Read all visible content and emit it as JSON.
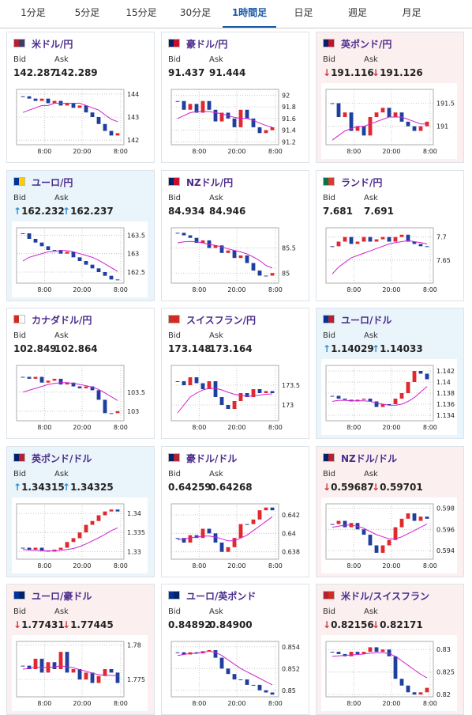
{
  "tabs": [
    "1分足",
    "5分足",
    "15分足",
    "30分足",
    "1時間足",
    "日足",
    "週足",
    "月足"
  ],
  "active_tab": 4,
  "labels": {
    "bid": "Bid",
    "ask": "Ask"
  },
  "xlabels": [
    "8:00",
    "20:00",
    "8:00"
  ],
  "cards": [
    {
      "name": "米ドル/円",
      "bid": "142.287",
      "ask": "142.289",
      "trend": null,
      "flag": [
        "#b22234",
        "#3c3b6e"
      ],
      "chart": {
        "ylim": [
          141.8,
          144.2
        ],
        "yticks": [
          142,
          143,
          144
        ],
        "close": [
          143.9,
          143.8,
          143.7,
          143.8,
          143.6,
          143.7,
          143.5,
          143.6,
          143.4,
          143.5,
          143.2,
          143.0,
          142.7,
          142.4,
          142.2,
          142.3
        ],
        "ma": [
          143.2,
          143.3,
          143.4,
          143.5,
          143.5,
          143.6,
          143.6,
          143.6,
          143.6,
          143.6,
          143.5,
          143.4,
          143.3,
          143.1,
          142.9,
          142.8
        ]
      }
    },
    {
      "name": "豪ドル/円",
      "bid": "91.437",
      "ask": "91.444",
      "trend": null,
      "flag": [
        "#012169",
        "#c8102e"
      ],
      "chart": {
        "ylim": [
          91.15,
          92.1
        ],
        "yticks": [
          91.2,
          91.4,
          91.6,
          91.8,
          92
        ],
        "close": [
          91.9,
          91.75,
          91.85,
          91.7,
          91.9,
          91.75,
          91.55,
          91.7,
          91.6,
          91.45,
          91.75,
          91.6,
          91.45,
          91.35,
          91.4,
          91.45
        ],
        "ma": [
          91.6,
          91.65,
          91.7,
          91.72,
          91.72,
          91.72,
          91.7,
          91.68,
          91.65,
          91.62,
          91.6,
          91.6,
          91.57,
          91.52,
          91.48,
          91.45
        ]
      }
    },
    {
      "name": "英ポンド/円",
      "bid": "191.116",
      "ask": "191.126",
      "trend": "down",
      "arrow": "↓",
      "flag": [
        "#012169",
        "#c8102e"
      ],
      "chart": {
        "ylim": [
          190.6,
          191.8
        ],
        "yticks": [
          191,
          191.5
        ],
        "close": [
          191.5,
          191.2,
          191.3,
          190.9,
          191.0,
          190.8,
          191.2,
          191.3,
          191.4,
          191.2,
          191.3,
          191.1,
          191.0,
          190.9,
          191.0,
          191.1
        ],
        "ma": [
          190.7,
          190.8,
          190.9,
          190.95,
          191.0,
          191.0,
          191.05,
          191.1,
          191.15,
          191.2,
          191.2,
          191.2,
          191.15,
          191.1,
          191.05,
          191.05
        ]
      }
    },
    {
      "name": "ユーロ/円",
      "bid": "162.232",
      "ask": "162.237",
      "trend": "up",
      "arrow": "↑",
      "flag": [
        "#003399",
        "#ffcc00"
      ],
      "chart": {
        "ylim": [
          162.2,
          163.7
        ],
        "yticks": [
          162.5,
          163,
          163.5
        ],
        "close": [
          163.55,
          163.4,
          163.3,
          163.2,
          163.1,
          163.1,
          163.0,
          163.05,
          162.9,
          162.8,
          162.7,
          162.6,
          162.5,
          162.4,
          162.3,
          162.3
        ],
        "ma": [
          162.8,
          162.9,
          162.95,
          163.0,
          163.05,
          163.05,
          163.08,
          163.08,
          163.05,
          163.0,
          162.95,
          162.9,
          162.82,
          162.72,
          162.62,
          162.52
        ]
      }
    },
    {
      "name": "NZドル/円",
      "bid": "84.934",
      "ask": "84.946",
      "trend": null,
      "flag": [
        "#012169",
        "#c8102e"
      ],
      "chart": {
        "ylim": [
          84.8,
          85.9
        ],
        "yticks": [
          85,
          85.5
        ],
        "close": [
          85.8,
          85.75,
          85.7,
          85.6,
          85.65,
          85.5,
          85.55,
          85.4,
          85.45,
          85.3,
          85.35,
          85.2,
          85.05,
          84.95,
          84.95,
          85.0
        ],
        "ma": [
          85.6,
          85.62,
          85.63,
          85.62,
          85.6,
          85.57,
          85.55,
          85.52,
          85.48,
          85.45,
          85.42,
          85.38,
          85.32,
          85.25,
          85.15,
          85.1
        ]
      }
    },
    {
      "name": "ランド/円",
      "bid": "7.681",
      "ask": "7.691",
      "trend": null,
      "flag": [
        "#007749",
        "#de3831"
      ],
      "chart": {
        "ylim": [
          7.6,
          7.72
        ],
        "yticks": [
          7.65,
          7.7
        ],
        "close": [
          7.68,
          7.69,
          7.7,
          7.685,
          7.69,
          7.7,
          7.69,
          7.695,
          7.7,
          7.69,
          7.7,
          7.705,
          7.69,
          7.685,
          7.68,
          7.68
        ],
        "ma": [
          7.62,
          7.635,
          7.645,
          7.655,
          7.66,
          7.665,
          7.67,
          7.675,
          7.68,
          7.685,
          7.688,
          7.69,
          7.692,
          7.69,
          7.688,
          7.685
        ]
      }
    },
    {
      "name": "カナダドル/円",
      "bid": "102.849",
      "ask": "102.864",
      "trend": null,
      "flag": [
        "#d52b1e",
        "#ffffff"
      ],
      "chart": {
        "ylim": [
          102.75,
          104.2
        ],
        "yticks": [
          103,
          103.5
        ],
        "close": [
          103.9,
          103.85,
          103.9,
          103.75,
          103.8,
          103.85,
          103.7,
          103.75,
          103.65,
          103.6,
          103.65,
          103.55,
          103.3,
          102.95,
          102.95,
          103.0
        ],
        "ma": [
          103.5,
          103.55,
          103.6,
          103.65,
          103.7,
          103.73,
          103.75,
          103.75,
          103.73,
          103.7,
          103.67,
          103.63,
          103.57,
          103.48,
          103.38,
          103.28
        ]
      }
    },
    {
      "name": "スイスフラン/円",
      "bid": "173.148",
      "ask": "173.164",
      "trend": null,
      "flag": [
        "#d52b1e",
        "#d52b1e"
      ],
      "chart": {
        "ylim": [
          172.6,
          174.0
        ],
        "yticks": [
          173,
          173.5
        ],
        "close": [
          173.6,
          173.5,
          173.7,
          173.55,
          173.4,
          173.6,
          173.2,
          173.0,
          172.9,
          173.1,
          173.3,
          173.2,
          173.4,
          173.3,
          173.35,
          173.3
        ],
        "ma": [
          172.8,
          173.0,
          173.2,
          173.3,
          173.38,
          173.42,
          173.42,
          173.38,
          173.32,
          173.27,
          173.24,
          173.22,
          173.23,
          173.25,
          173.27,
          173.28
        ]
      }
    },
    {
      "name": "ユーロ/ドル",
      "bid": "1.14029",
      "ask": "1.14033",
      "trend": "up",
      "arrow": "↑",
      "flag": [
        "#003399",
        "#b22234"
      ],
      "chart": {
        "ylim": [
          1.133,
          1.143
        ],
        "yticks": [
          1.134,
          1.136,
          1.138,
          1.14,
          1.142
        ],
        "close": [
          1.1375,
          1.137,
          1.1368,
          1.1365,
          1.1368,
          1.137,
          1.1365,
          1.1355,
          1.136,
          1.136,
          1.137,
          1.138,
          1.14,
          1.142,
          1.1415,
          1.1405
        ],
        "ma": [
          1.1365,
          1.1367,
          1.1367,
          1.1366,
          1.1366,
          1.1366,
          1.1365,
          1.1362,
          1.136,
          1.1358,
          1.1358,
          1.136,
          1.1365,
          1.1372,
          1.1382,
          1.1392
        ]
      }
    },
    {
      "name": "英ポンド/ドル",
      "bid": "1.34315",
      "ask": "1.34325",
      "trend": "up",
      "arrow": "↑",
      "flag": [
        "#012169",
        "#b22234"
      ],
      "chart": {
        "ylim": [
          1.328,
          1.3425
        ],
        "yticks": [
          1.33,
          1.335,
          1.34
        ],
        "close": [
          1.331,
          1.3305,
          1.331,
          1.3302,
          1.33,
          1.3305,
          1.331,
          1.3325,
          1.3335,
          1.335,
          1.337,
          1.338,
          1.3395,
          1.3405,
          1.341,
          1.3405
        ],
        "ma": [
          1.3305,
          1.3304,
          1.3303,
          1.3302,
          1.3302,
          1.3302,
          1.3303,
          1.3305,
          1.3308,
          1.3313,
          1.332,
          1.3328,
          1.3336,
          1.3345,
          1.3355,
          1.3362
        ]
      }
    },
    {
      "name": "豪ドル/ドル",
      "bid": "0.64259",
      "ask": "0.64268",
      "trend": null,
      "flag": [
        "#012169",
        "#b22234"
      ],
      "chart": {
        "ylim": [
          0.6372,
          0.6432
        ],
        "yticks": [
          0.638,
          0.64,
          0.642
        ],
        "close": [
          0.6395,
          0.639,
          0.6398,
          0.6395,
          0.6405,
          0.64,
          0.639,
          0.638,
          0.6385,
          0.6395,
          0.641,
          0.641,
          0.6415,
          0.6425,
          0.6428,
          0.6425
        ],
        "ma": [
          0.6393,
          0.6394,
          0.6395,
          0.6396,
          0.6397,
          0.6397,
          0.6396,
          0.6394,
          0.6392,
          0.6392,
          0.6395,
          0.6398,
          0.6403,
          0.6408,
          0.6413,
          0.6418
        ]
      }
    },
    {
      "name": "NZドル/ドル",
      "bid": "0.59687",
      "ask": "0.59701",
      "trend": "down",
      "arrow": "↓",
      "flag": [
        "#012169",
        "#b22234"
      ],
      "chart": {
        "ylim": [
          0.5932,
          0.5984
        ],
        "yticks": [
          0.594,
          0.596,
          0.598
        ],
        "close": [
          0.5965,
          0.5968,
          0.5962,
          0.5966,
          0.596,
          0.5955,
          0.5945,
          0.5938,
          0.5945,
          0.595,
          0.5962,
          0.597,
          0.5975,
          0.5968,
          0.5972,
          0.597
        ],
        "ma": [
          0.5962,
          0.5963,
          0.5964,
          0.5964,
          0.5963,
          0.5961,
          0.5958,
          0.5955,
          0.5953,
          0.5951,
          0.5951,
          0.5953,
          0.5956,
          0.5959,
          0.5962,
          0.5965
        ]
      }
    },
    {
      "name": "ユーロ/豪ドル",
      "bid": "1.77431",
      "ask": "1.77445",
      "trend": "down",
      "arrow": "↓",
      "flag": [
        "#003399",
        "#012169"
      ],
      "chart": {
        "ylim": [
          1.7725,
          1.7805
        ],
        "yticks": [
          1.775,
          1.78
        ],
        "close": [
          1.777,
          1.7765,
          1.778,
          1.776,
          1.7775,
          1.7765,
          1.779,
          1.776,
          1.7765,
          1.775,
          1.776,
          1.7745,
          1.7755,
          1.7765,
          1.776,
          1.7745
        ],
        "ma": [
          1.7765,
          1.7766,
          1.7768,
          1.7767,
          1.7768,
          1.7768,
          1.777,
          1.7768,
          1.7767,
          1.7764,
          1.7762,
          1.7759,
          1.7757,
          1.7756,
          1.7756,
          1.7755
        ]
      }
    },
    {
      "name": "ユーロ/英ポンド",
      "bid": "0.84892",
      "ask": "0.84900",
      "trend": null,
      "flag": [
        "#003399",
        "#012169"
      ],
      "chart": {
        "ylim": [
          0.8494,
          0.8545
        ],
        "yticks": [
          0.85,
          0.852,
          0.854
        ],
        "close": [
          0.8535,
          0.8533,
          0.8535,
          0.8534,
          0.8536,
          0.8537,
          0.853,
          0.852,
          0.8515,
          0.851,
          0.851,
          0.8505,
          0.8505,
          0.85,
          0.8498,
          0.8496
        ],
        "ma": [
          0.8532,
          0.8533,
          0.8534,
          0.8534,
          0.8535,
          0.8536,
          0.8535,
          0.8532,
          0.8528,
          0.8524,
          0.852,
          0.8517,
          0.8514,
          0.8511,
          0.8508,
          0.8505
        ]
      }
    },
    {
      "name": "米ドル/スイスフラン",
      "bid": "0.82156",
      "ask": "0.82171",
      "trend": "down",
      "arrow": "↓",
      "flag": [
        "#b22234",
        "#d52b1e"
      ],
      "chart": {
        "ylim": [
          0.8195,
          0.8318
        ],
        "yticks": [
          0.82,
          0.825,
          0.83
        ],
        "close": [
          0.8295,
          0.829,
          0.8285,
          0.8295,
          0.829,
          0.8295,
          0.8305,
          0.8295,
          0.83,
          0.8285,
          0.8235,
          0.822,
          0.8205,
          0.82,
          0.8205,
          0.8215
        ],
        "ma": [
          0.8285,
          0.8286,
          0.8287,
          0.8288,
          0.8289,
          0.829,
          0.8292,
          0.8293,
          0.8293,
          0.8291,
          0.8285,
          0.8275,
          0.8265,
          0.8255,
          0.8245,
          0.8237
        ]
      }
    }
  ]
}
